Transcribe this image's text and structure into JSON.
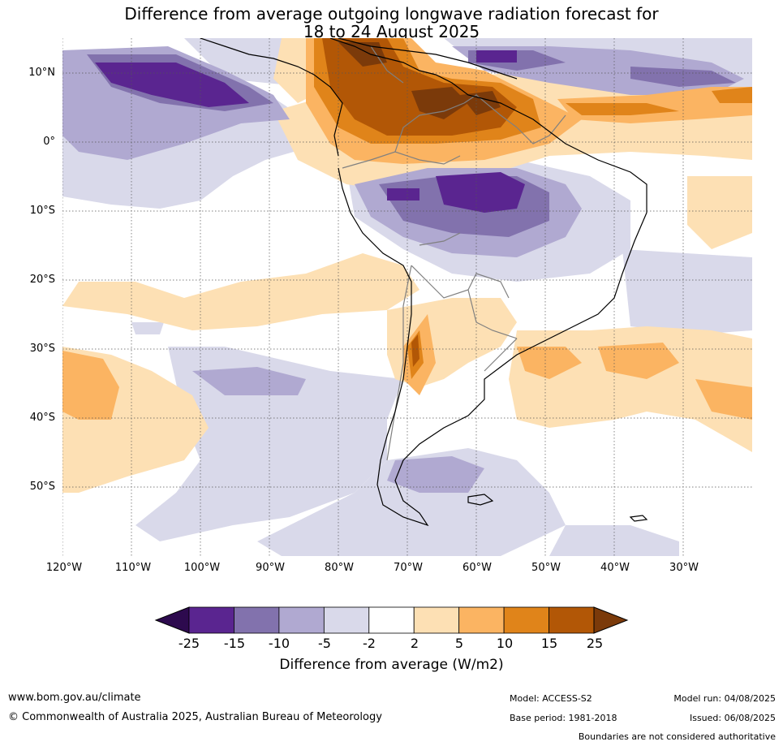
{
  "title": {
    "line1": "Difference from average outgoing longwave radiation forecast for",
    "line2": "18 to 24 August 2025"
  },
  "map": {
    "lat_labels": [
      "10°N",
      "0°",
      "10°S",
      "20°S",
      "30°S",
      "40°S",
      "50°S"
    ],
    "lon_labels": [
      "120°W",
      "110°W",
      "100°W",
      "90°W",
      "80°W",
      "70°W",
      "60°W",
      "50°W",
      "40°W",
      "30°W"
    ],
    "lon_range": [
      -120,
      -20
    ],
    "lat_range": [
      -60,
      15
    ],
    "colors": {
      "neg25": "#2d0a4e",
      "neg15_25": "#5a2590",
      "neg10_15": "#8272ad",
      "neg5_10": "#b0a9d1",
      "neg2_5": "#d9d9ea",
      "neutral": "#ffffff",
      "pos2_5": "#fde0b4",
      "pos5_10": "#fbb462",
      "pos10_15": "#e0841a",
      "pos15_25": "#b25706",
      "pos25": "#7b3a0a",
      "coast": "#000000",
      "border": "#808080",
      "grid": "#555555"
    }
  },
  "colorbar": {
    "tick_labels": [
      "-25",
      "-15",
      "-10",
      "-5",
      "-2",
      "2",
      "5",
      "10",
      "15",
      "25"
    ],
    "bins": [
      "#5a2590",
      "#8272ad",
      "#b0a9d1",
      "#d9d9ea",
      "#ffffff",
      "#fde0b4",
      "#fbb462",
      "#e0841a",
      "#b25706"
    ],
    "low_extend": "#2d0a4e",
    "high_extend": "#7b3a0a",
    "label": "Difference from average (W/m2)"
  },
  "footer": {
    "website": "www.bom.gov.au/climate",
    "copyright": "© Commonwealth of Australia 2025, Australian Bureau of Meteorology",
    "model": "Model: ACCESS-S2",
    "base_period": "Base period: 1981-2018",
    "model_run": "Model run: 04/08/2025",
    "issued": "Issued: 06/08/2025",
    "boundaries_note": "Boundaries are not considered authoritative"
  }
}
